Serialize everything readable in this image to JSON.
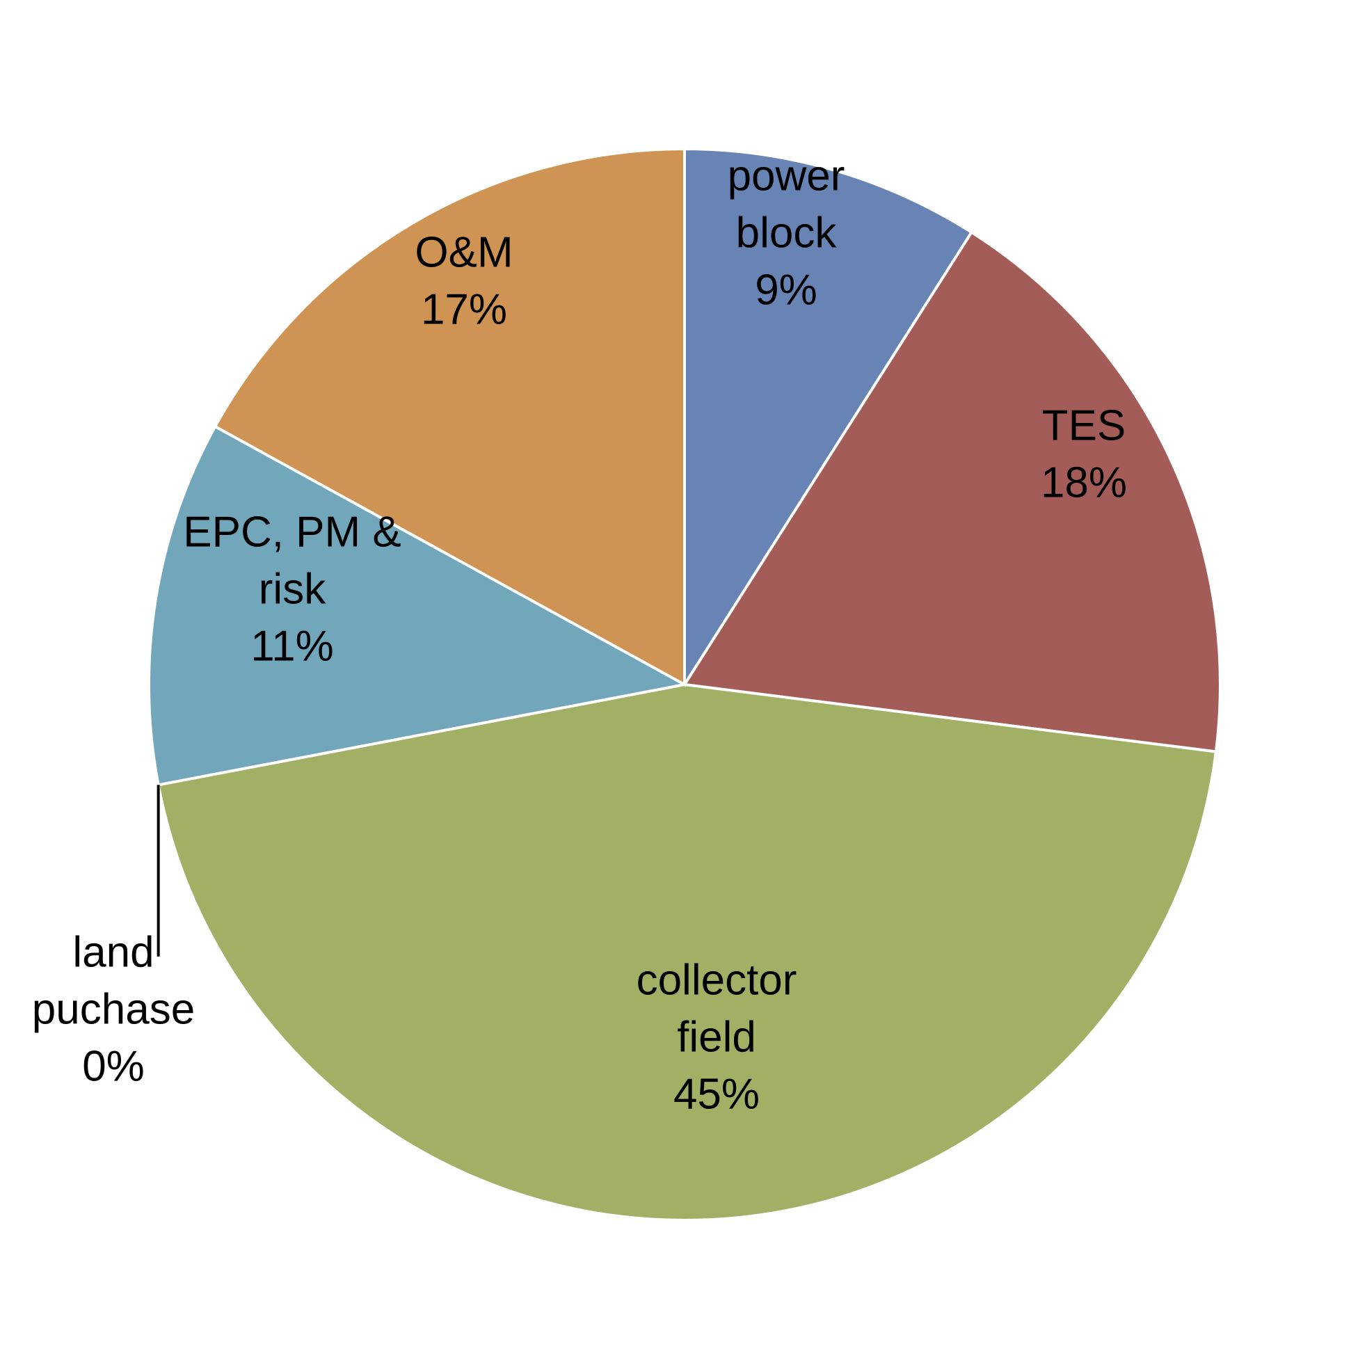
{
  "chart_data": {
    "type": "pie",
    "title": "",
    "slices": [
      {
        "label_lines": [
          "power",
          "block"
        ],
        "percent_label": "9%",
        "value": 9,
        "color": "#6784b4"
      },
      {
        "label_lines": [
          "TES"
        ],
        "percent_label": "18%",
        "value": 18,
        "color": "#a35c57"
      },
      {
        "label_lines": [
          "collector",
          "field"
        ],
        "percent_label": "45%",
        "value": 45,
        "color": "#a1b065"
      },
      {
        "label_lines": [
          "land",
          "puchase"
        ],
        "percent_label": "0%",
        "value": 0,
        "color": "#000000"
      },
      {
        "label_lines": [
          "EPC, PM &",
          "risk"
        ],
        "percent_label": "11%",
        "value": 11,
        "color": "#71a6bb"
      },
      {
        "label_lines": [
          "O&M"
        ],
        "percent_label": "17%",
        "value": 17,
        "color": "#cf9453"
      }
    ],
    "start_angle_deg": 0,
    "direction": "clockwise",
    "legend": "none",
    "data_labels": "category and percent"
  }
}
